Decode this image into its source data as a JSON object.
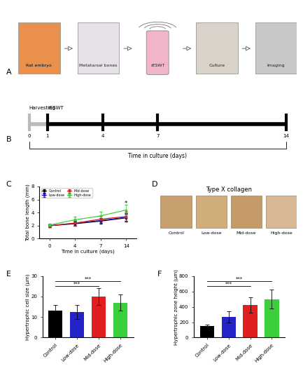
{
  "panel_labels": [
    "A",
    "B",
    "C",
    "D",
    "E",
    "F"
  ],
  "workflow": {
    "steps": [
      "Rat embryo",
      "Metatarsal bones",
      "rESWT",
      "Culture",
      "Imaging"
    ]
  },
  "timeline": {
    "days": [
      0,
      1,
      4,
      7,
      14
    ],
    "harvest_label": "Harvesting",
    "treatment_label": "rESWT",
    "axis_label": "Time in culture (days)"
  },
  "collagen": {
    "title": "Type X collagen",
    "images": [
      "Control",
      "Low-dose",
      "Mid-dose",
      "High-dose"
    ]
  },
  "chart_data": [
    {
      "type": "line",
      "x_label": "Time in culture (days)",
      "y_label": "Total bone length (mm)",
      "categories": [
        "0",
        "4",
        "7",
        "14"
      ],
      "ylim": [
        0,
        8
      ],
      "yticks": [
        0,
        2,
        4,
        6,
        8
      ],
      "legend": "upper left",
      "marker": "s",
      "series": [
        {
          "name": "Control",
          "color": "#000000",
          "values": [
            2.0,
            2.3,
            2.7,
            3.2
          ],
          "errors": [
            0.2,
            0.3,
            0.4,
            0.6
          ]
        },
        {
          "name": "Low-dose",
          "color": "#2323c8",
          "values": [
            2.0,
            2.4,
            2.8,
            3.3
          ],
          "errors": [
            0.2,
            0.3,
            0.4,
            0.6
          ]
        },
        {
          "name": "Mid-dose",
          "color": "#e02020",
          "values": [
            2.0,
            2.4,
            3.0,
            3.4
          ],
          "errors": [
            0.2,
            0.4,
            0.5,
            0.7
          ]
        },
        {
          "name": "High-dose",
          "color": "#3ccf3c",
          "values": [
            2.1,
            2.9,
            3.5,
            4.4
          ],
          "errors": [
            0.2,
            0.5,
            0.6,
            0.8
          ]
        }
      ],
      "annotations": [
        {
          "x": "14",
          "y": 5.4,
          "text": "*"
        }
      ]
    },
    {
      "type": "bar",
      "y_label": "Hypertrophic cell size (μm)",
      "categories": [
        "Control",
        "Low-dose",
        "Mid-dose",
        "High-dose"
      ],
      "values": [
        13,
        12.5,
        20,
        17
      ],
      "errors": [
        3,
        3.5,
        4,
        4
      ],
      "colors": [
        "#000000",
        "#2323c8",
        "#e02020",
        "#3ccf3c"
      ],
      "ylim": [
        0,
        30
      ],
      "yticks": [
        0,
        10,
        20,
        30
      ],
      "annotations": [
        {
          "from": "Control",
          "to": "Mid-dose",
          "text": "***"
        },
        {
          "from": "Control",
          "to": "High-dose",
          "text": "***"
        }
      ]
    },
    {
      "type": "bar",
      "y_label": "Hypertrophic zone height (μm)",
      "categories": [
        "Control",
        "Low-dose",
        "Mid-dose",
        "High-dose"
      ],
      "values": [
        150,
        270,
        420,
        500
      ],
      "errors": [
        20,
        70,
        100,
        120
      ],
      "colors": [
        "#000000",
        "#2323c8",
        "#e02020",
        "#3ccf3c"
      ],
      "ylim": [
        0,
        800
      ],
      "yticks": [
        0,
        200,
        400,
        600,
        800
      ],
      "annotations": [
        {
          "from": "Control",
          "to": "Mid-dose",
          "text": "***"
        },
        {
          "from": "Control",
          "to": "High-dose",
          "text": "***"
        }
      ]
    }
  ]
}
